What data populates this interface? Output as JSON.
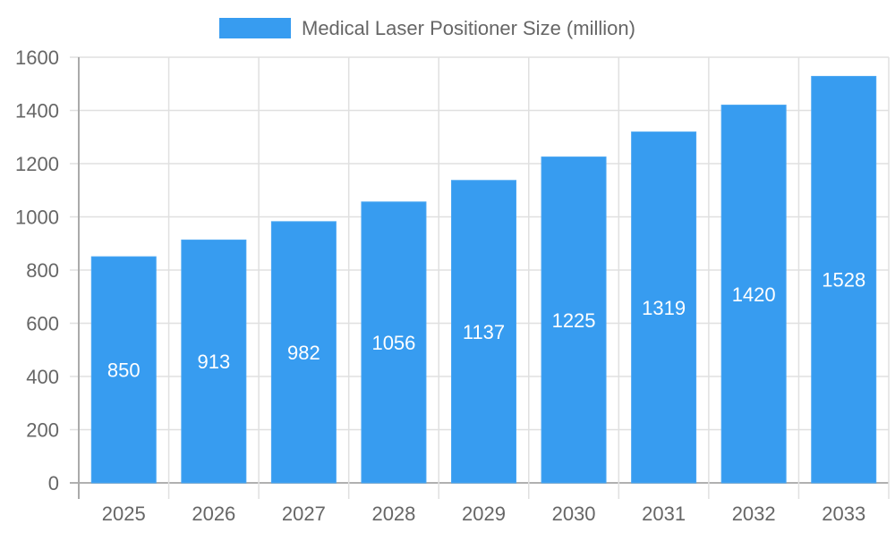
{
  "chart_data": {
    "type": "bar",
    "title": "",
    "xlabel": "",
    "ylabel": "",
    "categories": [
      "2025",
      "2026",
      "2027",
      "2028",
      "2029",
      "2030",
      "2031",
      "2032",
      "2033"
    ],
    "series": [
      {
        "name": "Medical Laser Positioner Size (million)",
        "values": [
          850,
          913,
          982,
          1056,
          1137,
          1225,
          1319,
          1420,
          1528
        ],
        "color": "#379cf0"
      }
    ],
    "ylim": [
      0,
      1600
    ],
    "yticks": [
      0,
      200,
      400,
      600,
      800,
      1000,
      1200,
      1400,
      1600
    ],
    "grid": true,
    "legend_position": "top",
    "data_labels": "inside-center"
  }
}
